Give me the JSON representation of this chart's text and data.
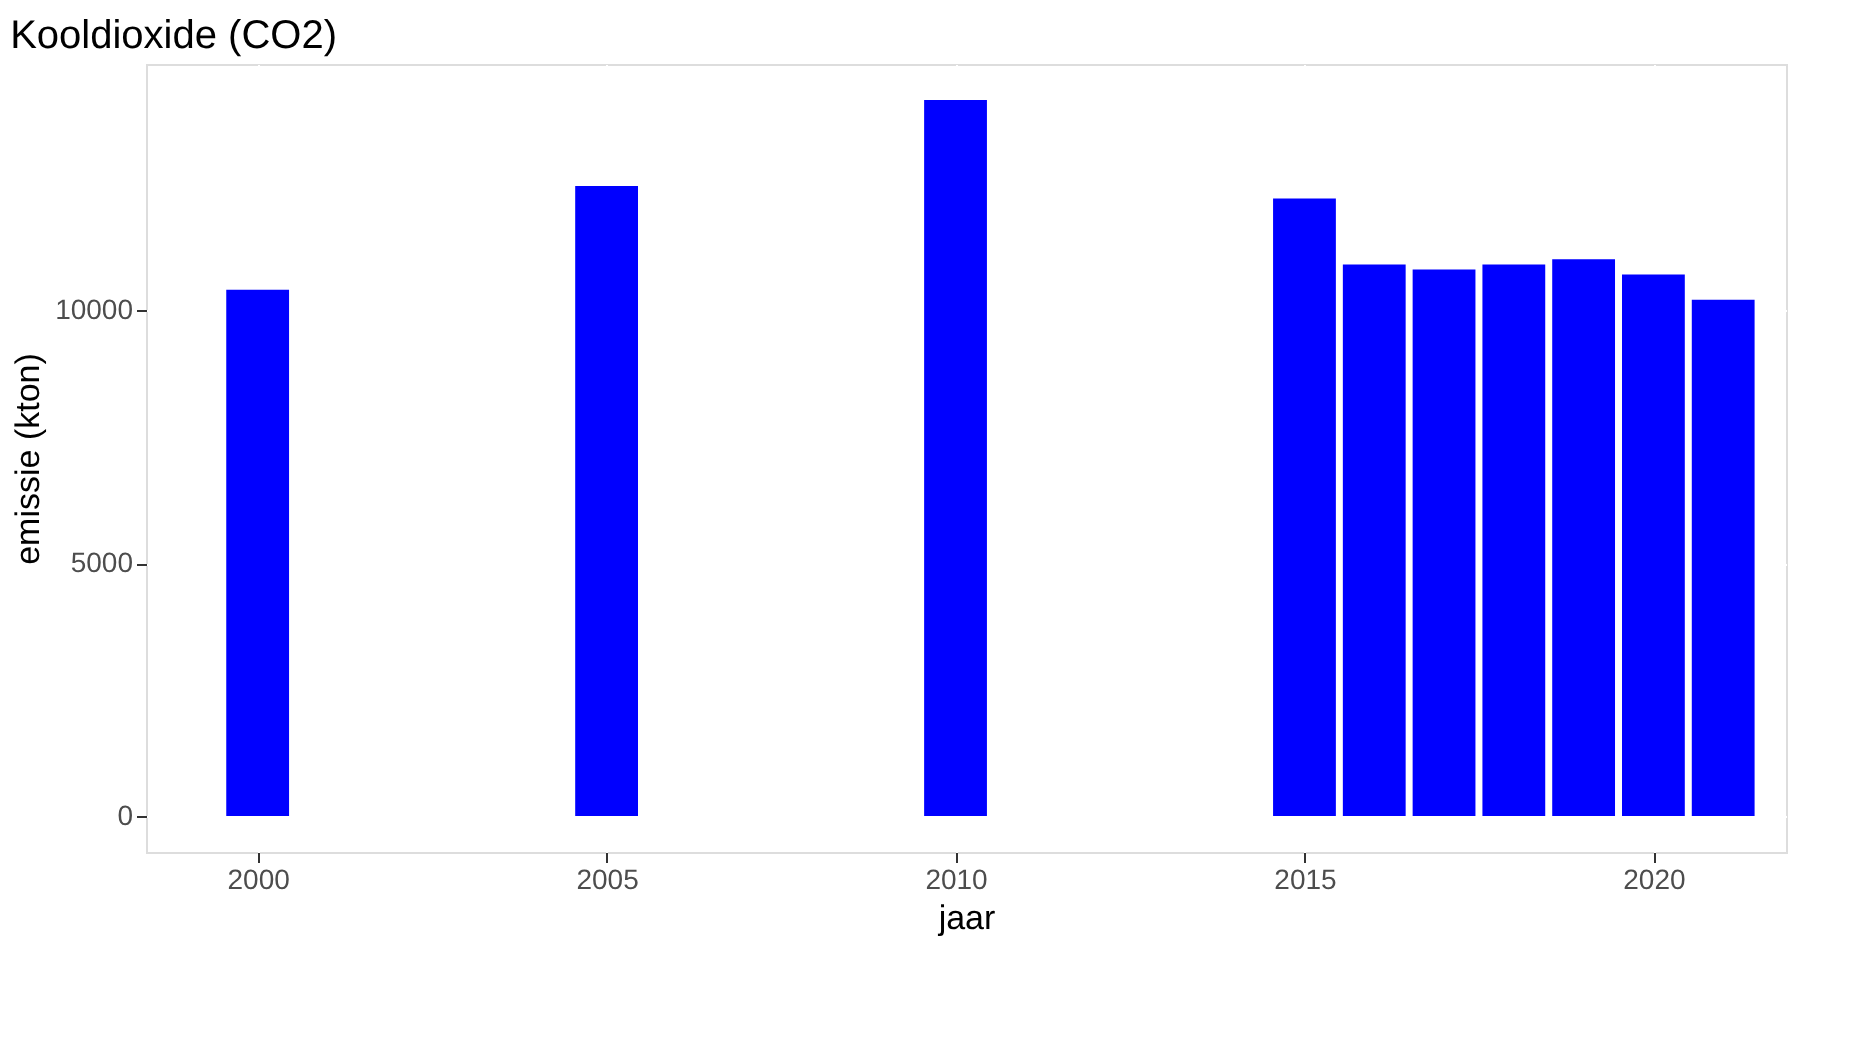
{
  "chart_data": {
    "type": "bar",
    "title": "Kooldioxide (CO2)",
    "xlabel": "jaar",
    "ylabel": "emissie (kton)",
    "x": [
      2000,
      2005,
      2010,
      2015,
      2016,
      2017,
      2018,
      2019,
      2020,
      2021
    ],
    "values": [
      10400,
      12450,
      14150,
      12200,
      10900,
      10800,
      10900,
      11000,
      10700,
      10200
    ],
    "color": "#0000ff",
    "xlim": [
      1998.4,
      2021.9
    ],
    "xticks": [
      2000,
      2005,
      2010,
      2015,
      2020
    ],
    "ylim": [
      -710,
      14860
    ],
    "yticks": [
      0,
      5000,
      10000
    ],
    "grid": true
  }
}
